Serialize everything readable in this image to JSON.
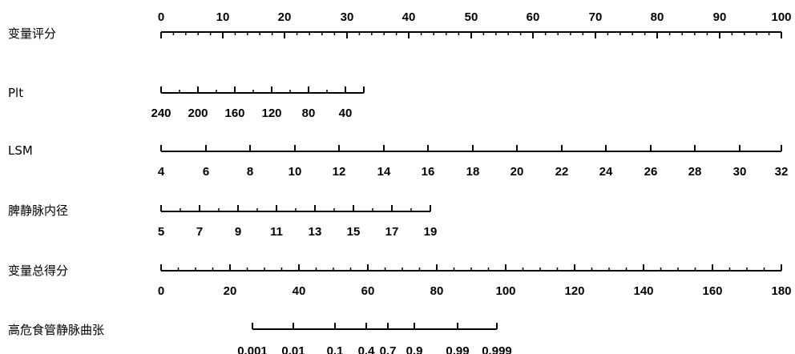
{
  "chart_data": {
    "type": "nomogram",
    "rows": [
      {
        "label": "变量评分",
        "ticks": [
          "0",
          "10",
          "20",
          "30",
          "40",
          "50",
          "60",
          "70",
          "80",
          "90",
          "100"
        ],
        "minor_per_major": 4,
        "labels_above": true
      },
      {
        "label": "Plt",
        "ticks": [
          "240",
          "200",
          "160",
          "120",
          "80",
          "40"
        ],
        "minor_per_major": 1,
        "labels_above": false
      },
      {
        "label": "LSM",
        "ticks": [
          "4",
          "6",
          "8",
          "10",
          "12",
          "14",
          "16",
          "18",
          "20",
          "22",
          "24",
          "26",
          "28",
          "30",
          "32"
        ],
        "minor_per_major": 0,
        "labels_above": false
      },
      {
        "label": "脾静脉内径",
        "ticks": [
          "5",
          "7",
          "9",
          "11",
          "13",
          "15",
          "17",
          "19"
        ],
        "minor_per_major": 1,
        "labels_above": false
      },
      {
        "label": "变量总得分",
        "ticks": [
          "0",
          "20",
          "40",
          "60",
          "80",
          "100",
          "120",
          "140",
          "160",
          "180"
        ],
        "minor_per_major": 3,
        "labels_above": false
      },
      {
        "label": "高危食管静脉曲张",
        "ticks": [
          "0.001",
          "0.01",
          "0.1",
          "0.4",
          "0.7",
          "0.9",
          "0.99",
          "0.999"
        ],
        "minor_per_major": 0,
        "labels_above": false
      }
    ]
  }
}
